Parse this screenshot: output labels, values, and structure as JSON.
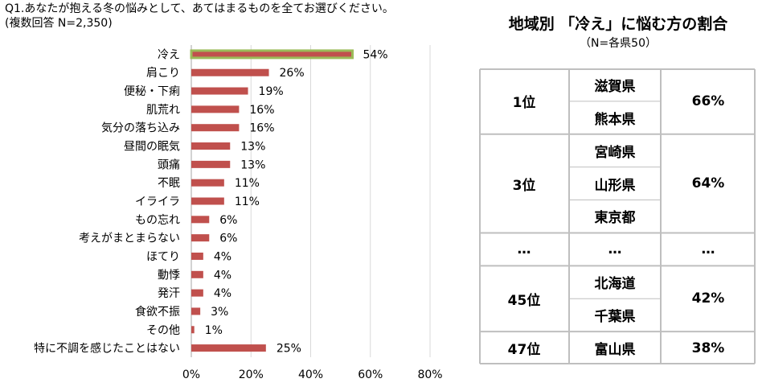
{
  "question": {
    "title": "Q1.あなたが抱える冬の悩みとして、あてはまるものを全てお選びください。",
    "subtitle": "(複数回答 N=2,350)"
  },
  "colors": {
    "bar": "#c0504d",
    "highlight_bar": "#c0504d",
    "highlight_outline": "#9bbb59",
    "gridline": "#d9d9d9",
    "table_border": "#bfbfbf"
  },
  "chart_data": {
    "type": "bar",
    "orientation": "horizontal",
    "categories": [
      "冷え",
      "肩こり",
      "便秘・下痢",
      "肌荒れ",
      "気分の落ち込み",
      "昼間の眠気",
      "頭痛",
      "不眠",
      "イライラ",
      "もの忘れ",
      "考えがまとまらない",
      "ほてり",
      "動悸",
      "発汗",
      "食欲不振",
      "その他",
      "特に不調を感じたことはない"
    ],
    "values": [
      54,
      26,
      19,
      16,
      16,
      13,
      13,
      11,
      11,
      6,
      6,
      4,
      4,
      4,
      3,
      1,
      25
    ],
    "value_labels": [
      "54%",
      "26%",
      "19%",
      "16%",
      "16%",
      "13%",
      "13%",
      "11%",
      "11%",
      "6%",
      "6%",
      "4%",
      "4%",
      "4%",
      "3%",
      "1%",
      "25%"
    ],
    "highlight_index": 0,
    "xlim": [
      0,
      80
    ],
    "xticks": [
      0,
      20,
      40,
      60,
      80
    ],
    "xtick_labels": [
      "0%",
      "20%",
      "40%",
      "60%",
      "80%"
    ],
    "grid": true
  },
  "table": {
    "title": "地域別 「冷え」に悩む方の割合",
    "subtitle": "（N=各県50）",
    "groups": [
      {
        "rank": "1位",
        "prefectures": [
          "滋賀県",
          "熊本県"
        ],
        "percent": "66%"
      },
      {
        "rank": "3位",
        "prefectures": [
          "宮崎県",
          "山形県",
          "東京都"
        ],
        "percent": "64%"
      },
      {
        "rank": "…",
        "prefectures": [
          "…"
        ],
        "percent": "…"
      },
      {
        "rank": "45位",
        "prefectures": [
          "北海道",
          "千葉県"
        ],
        "percent": "42%"
      },
      {
        "rank": "47位",
        "prefectures": [
          "富山県"
        ],
        "percent": "38%"
      }
    ]
  }
}
